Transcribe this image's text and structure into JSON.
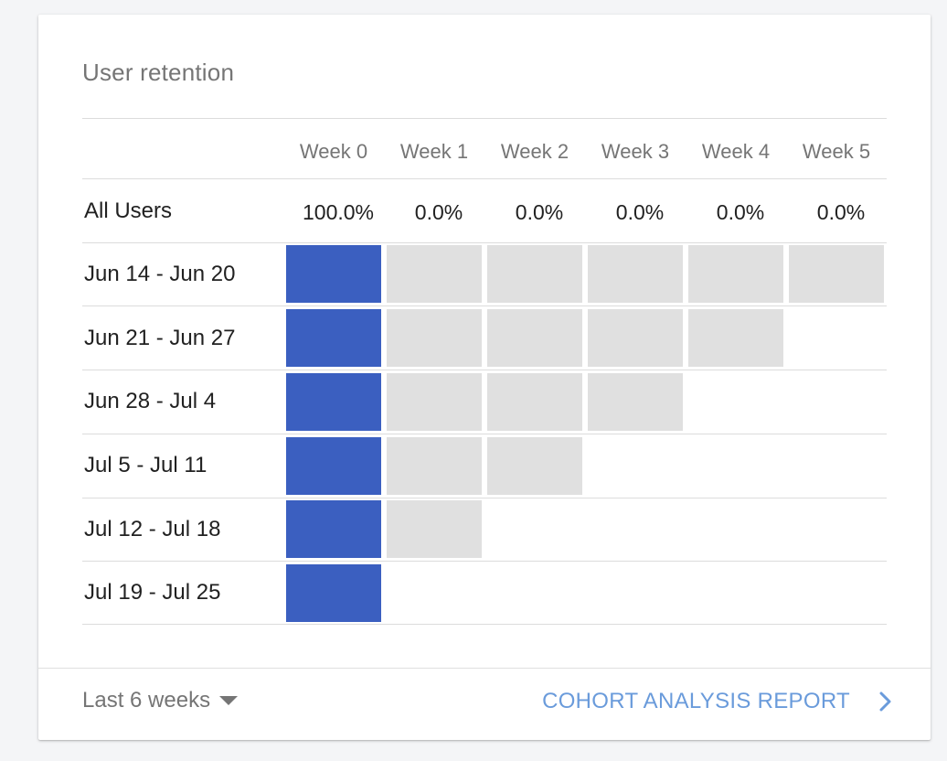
{
  "card": {
    "title": "User retention"
  },
  "colors": {
    "filled": "#3b5fc0",
    "empty": "#e0e0e0",
    "link": "#6a9bdb"
  },
  "table": {
    "weeks": [
      "Week 0",
      "Week 1",
      "Week 2",
      "Week 3",
      "Week 4",
      "Week 5"
    ],
    "all_users": {
      "label": "All Users",
      "values": [
        "100.0%",
        "0.0%",
        "0.0%",
        "0.0%",
        "0.0%",
        "0.0%"
      ]
    },
    "cohorts": [
      {
        "label": "Jun 14 - Jun 20",
        "retention": [
          1.0,
          0.0,
          0.0,
          0.0,
          0.0,
          0.0
        ]
      },
      {
        "label": "Jun 21 - Jun 27",
        "retention": [
          1.0,
          0.0,
          0.0,
          0.0,
          0.0
        ]
      },
      {
        "label": "Jun 28 - Jul 4",
        "retention": [
          1.0,
          0.0,
          0.0,
          0.0
        ]
      },
      {
        "label": "Jul 5 - Jul 11",
        "retention": [
          1.0,
          0.0,
          0.0
        ]
      },
      {
        "label": "Jul 12 - Jul 18",
        "retention": [
          1.0,
          0.0
        ]
      },
      {
        "label": "Jul 19 - Jul 25",
        "retention": [
          1.0
        ]
      }
    ]
  },
  "footer": {
    "range_label": "Last 6 weeks",
    "range_icon": "caret-down-icon",
    "report_label": "COHORT ANALYSIS REPORT",
    "report_icon": "chevron-right-icon"
  }
}
